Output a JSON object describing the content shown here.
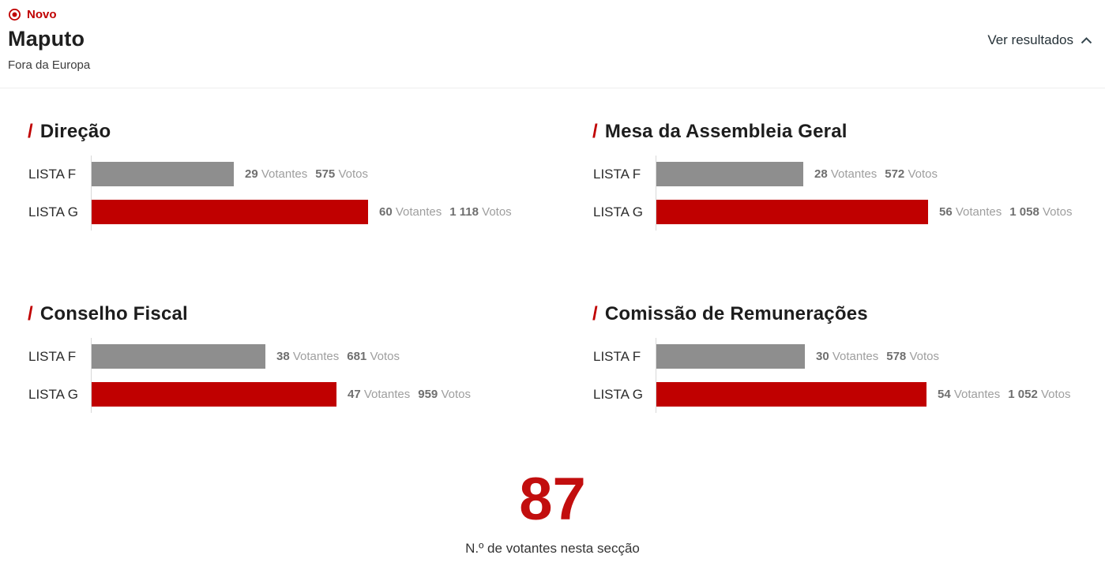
{
  "header": {
    "badge_label": "Novo",
    "title": "Maputo",
    "subtitle": "Fora da Europa",
    "results_toggle_label": "Ver resultados"
  },
  "labels": {
    "section_prefix": "/",
    "votantes": "Votantes",
    "votos": "Votos"
  },
  "colors": {
    "brand_red": "#c00000",
    "bar_gray": "#8e8e8e"
  },
  "summary": {
    "value": "87",
    "caption": "N.º de votantes nesta secção"
  },
  "chart_data": [
    {
      "type": "bar",
      "title": "Direção",
      "categories": [
        "LISTA F",
        "LISTA G"
      ],
      "series": [
        {
          "name": "Votantes",
          "values": [
            29,
            60
          ]
        },
        {
          "name": "Votos",
          "values": [
            575,
            1118
          ]
        }
      ],
      "bars": [
        {
          "label": "LISTA F",
          "votantes": "29",
          "votos": 575,
          "votos_display": "575",
          "color": "gray"
        },
        {
          "label": "LISTA G",
          "votantes": "60",
          "votos": 1118,
          "votos_display": "1 118",
          "color": "red"
        }
      ]
    },
    {
      "type": "bar",
      "title": "Mesa da Assembleia Geral",
      "categories": [
        "LISTA F",
        "LISTA G"
      ],
      "series": [
        {
          "name": "Votantes",
          "values": [
            28,
            56
          ]
        },
        {
          "name": "Votos",
          "values": [
            572,
            1058
          ]
        }
      ],
      "bars": [
        {
          "label": "LISTA F",
          "votantes": "28",
          "votos": 572,
          "votos_display": "572",
          "color": "gray"
        },
        {
          "label": "LISTA G",
          "votantes": "56",
          "votos": 1058,
          "votos_display": "1 058",
          "color": "red"
        }
      ]
    },
    {
      "type": "bar",
      "title": "Conselho Fiscal",
      "categories": [
        "LISTA F",
        "LISTA G"
      ],
      "series": [
        {
          "name": "Votantes",
          "values": [
            38,
            47
          ]
        },
        {
          "name": "Votos",
          "values": [
            681,
            959
          ]
        }
      ],
      "bars": [
        {
          "label": "LISTA F",
          "votantes": "38",
          "votos": 681,
          "votos_display": "681",
          "color": "gray"
        },
        {
          "label": "LISTA G",
          "votantes": "47",
          "votos": 959,
          "votos_display": "959",
          "color": "red"
        }
      ]
    },
    {
      "type": "bar",
      "title": "Comissão de Remunerações",
      "categories": [
        "LISTA F",
        "LISTA G"
      ],
      "series": [
        {
          "name": "Votantes",
          "values": [
            30,
            54
          ]
        },
        {
          "name": "Votos",
          "values": [
            578,
            1052
          ]
        }
      ],
      "bars": [
        {
          "label": "LISTA F",
          "votantes": "30",
          "votos": 578,
          "votos_display": "578",
          "color": "gray"
        },
        {
          "label": "LISTA G",
          "votantes": "54",
          "votos": 1052,
          "votos_display": "1 052",
          "color": "red"
        }
      ]
    }
  ]
}
